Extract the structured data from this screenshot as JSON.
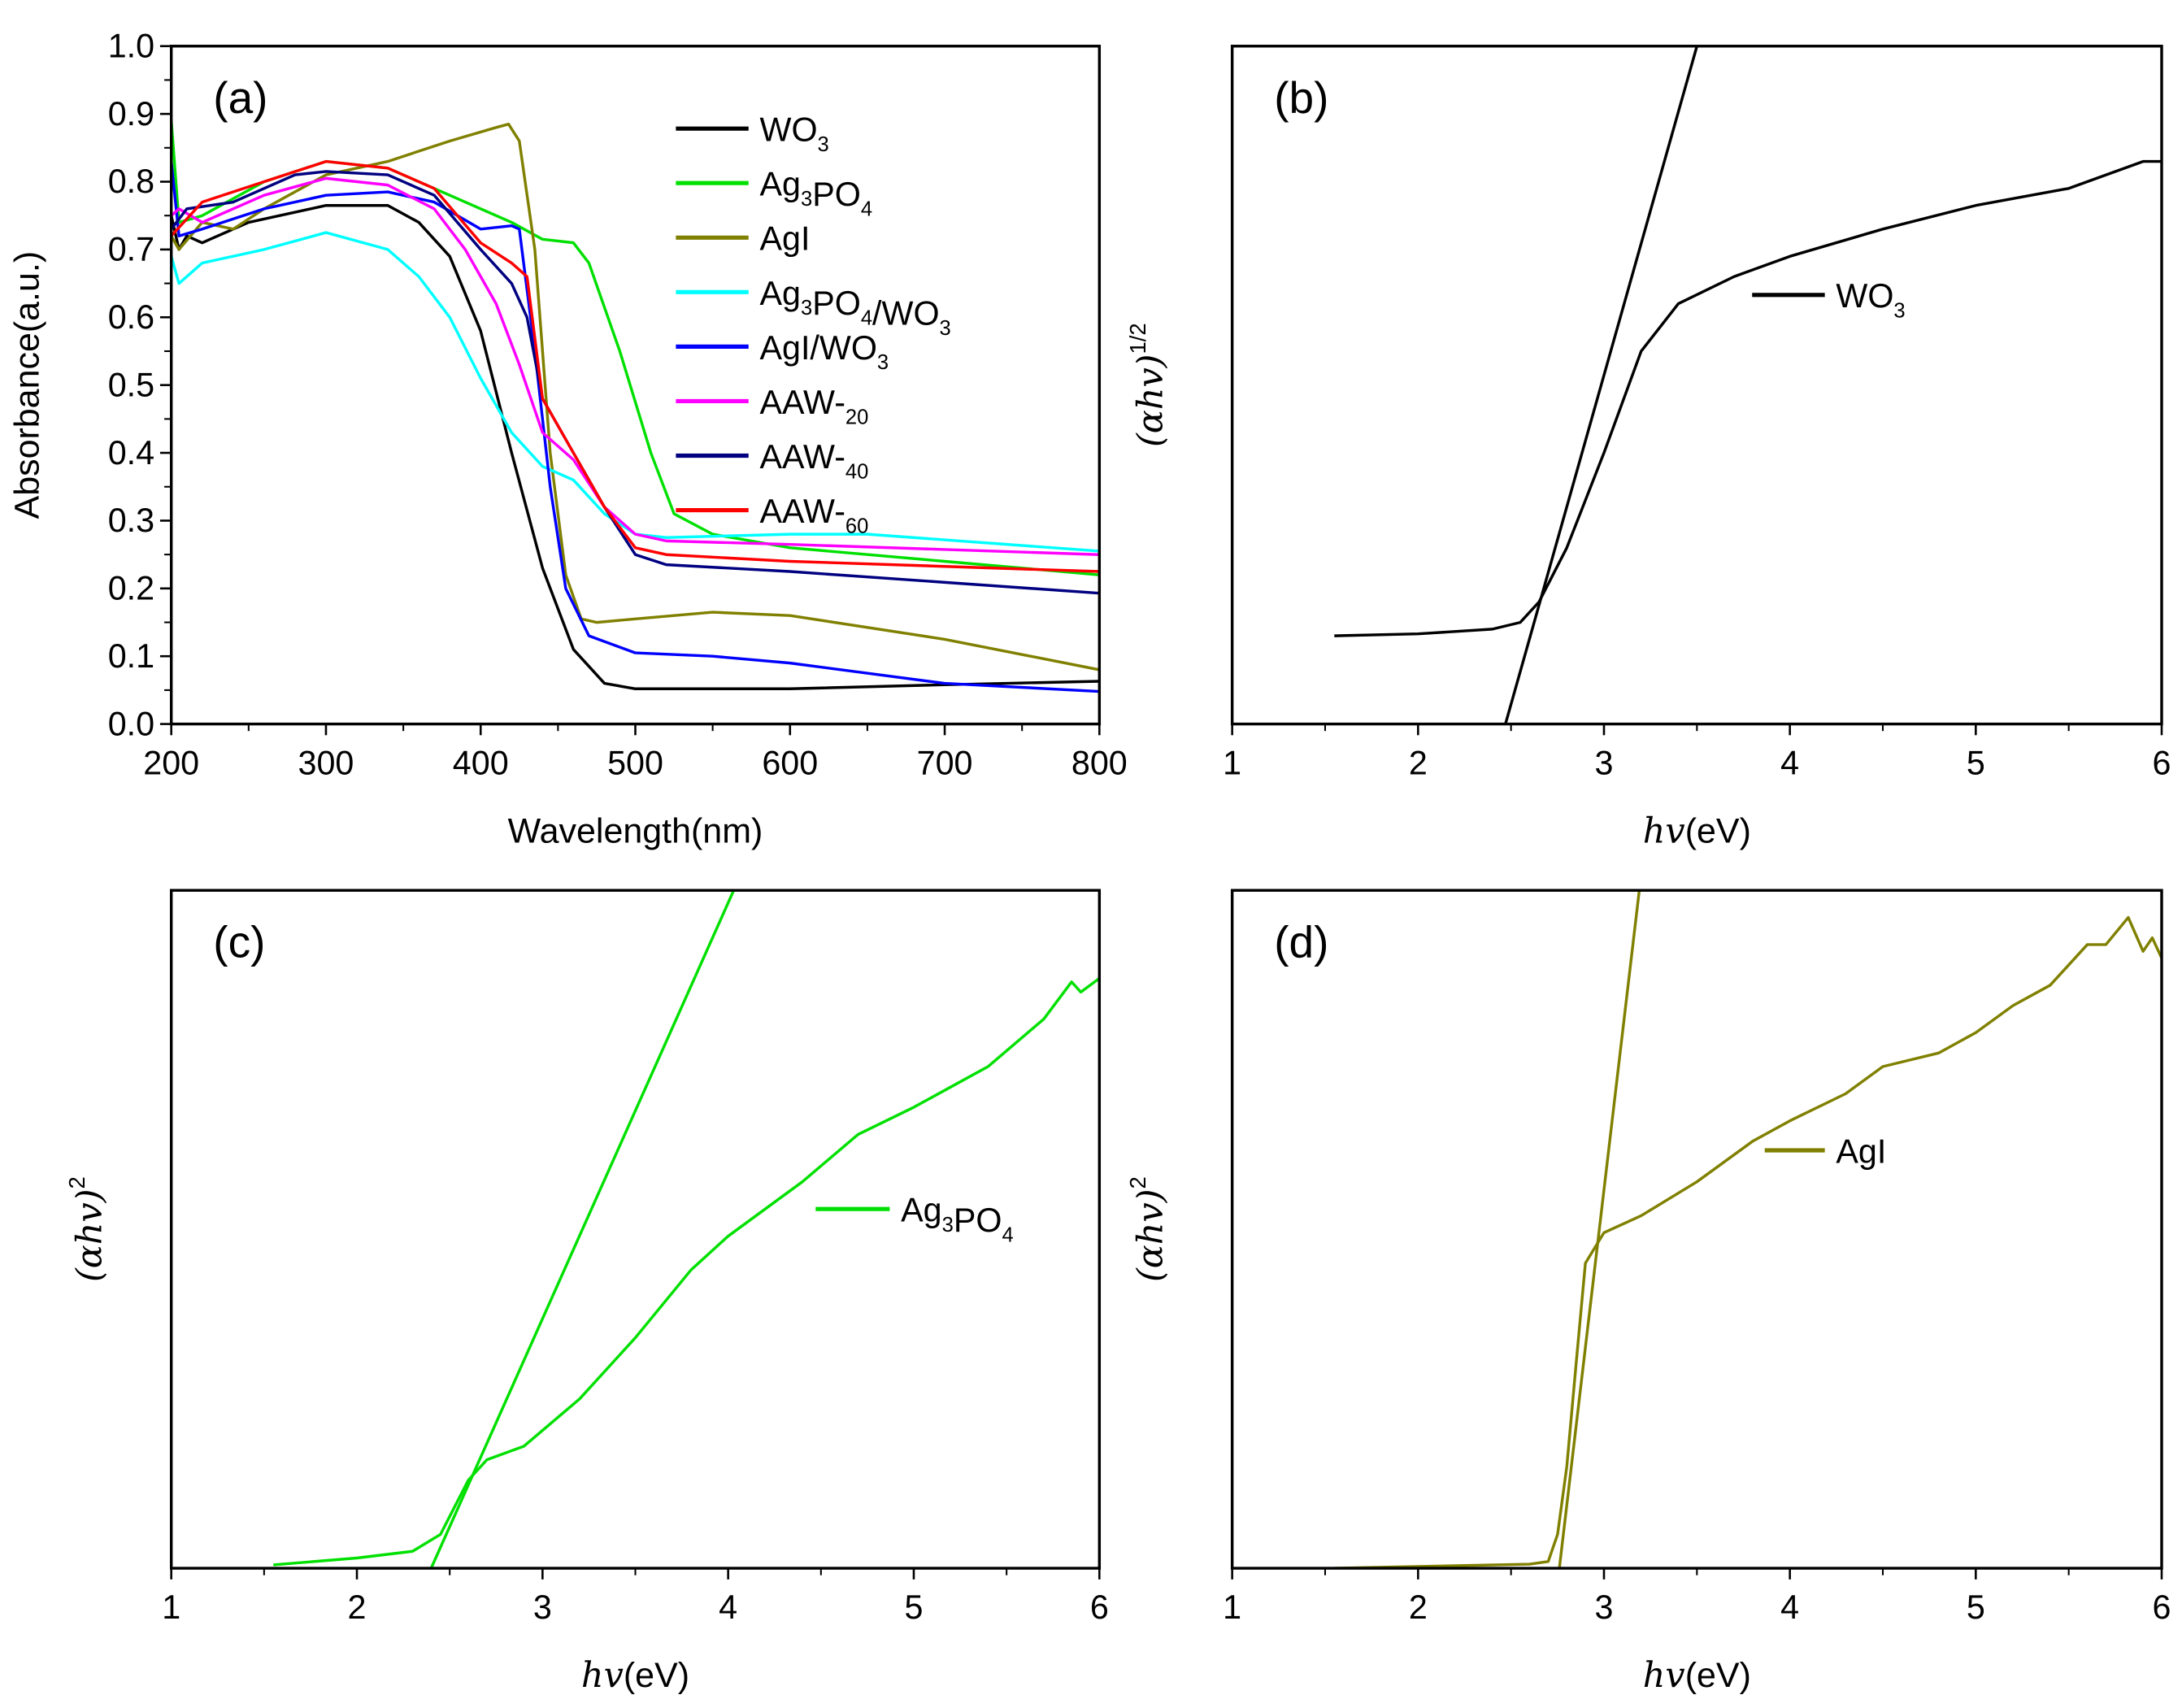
{
  "chart_data": [
    {
      "type": "line",
      "panel_label": "(a)",
      "xlabel": "Wavelength(nm)",
      "ylabel": "Absorbance(a.u.)",
      "xlim": [
        200,
        800
      ],
      "ylim": [
        0,
        1.0
      ],
      "xticks": [
        "200",
        "300",
        "400",
        "500",
        "600",
        "700",
        "800"
      ],
      "yticks": [
        "0.0",
        "0.1",
        "0.2",
        "0.3",
        "0.4",
        "0.5",
        "0.6",
        "0.7",
        "0.8",
        "0.9",
        "1.0"
      ],
      "legend_position": "top-right",
      "series": [
        {
          "name": "WO3",
          "color": "#000000",
          "x": [
            200,
            205,
            210,
            220,
            250,
            300,
            340,
            360,
            380,
            400,
            420,
            440,
            460,
            480,
            500,
            600,
            700,
            800
          ],
          "y": [
            0.75,
            0.7,
            0.72,
            0.71,
            0.74,
            0.765,
            0.765,
            0.74,
            0.69,
            0.58,
            0.4,
            0.23,
            0.11,
            0.06,
            0.052,
            0.052,
            0.058,
            0.063
          ]
        },
        {
          "name": "Ag3PO4",
          "color": "#00e000",
          "x": [
            200,
            205,
            220,
            260,
            300,
            340,
            380,
            420,
            440,
            460,
            470,
            490,
            510,
            525,
            550,
            600,
            700,
            800
          ],
          "y": [
            0.89,
            0.74,
            0.75,
            0.8,
            0.83,
            0.82,
            0.78,
            0.74,
            0.715,
            0.71,
            0.68,
            0.55,
            0.4,
            0.31,
            0.28,
            0.26,
            0.24,
            0.22
          ]
        },
        {
          "name": "AgI",
          "color": "#808000",
          "x": [
            200,
            205,
            220,
            240,
            260,
            300,
            340,
            380,
            410,
            418,
            425,
            435,
            445,
            455,
            465,
            475,
            500,
            550,
            600,
            700,
            800
          ],
          "y": [
            0.72,
            0.7,
            0.74,
            0.73,
            0.76,
            0.81,
            0.83,
            0.86,
            0.88,
            0.885,
            0.86,
            0.7,
            0.4,
            0.22,
            0.155,
            0.15,
            0.155,
            0.165,
            0.16,
            0.125,
            0.08
          ]
        },
        {
          "name": "Ag3PO4/WO3",
          "color": "#00ffff",
          "x": [
            200,
            205,
            220,
            260,
            300,
            340,
            360,
            380,
            400,
            420,
            440,
            460,
            480,
            500,
            520,
            600,
            650,
            800
          ],
          "y": [
            0.69,
            0.65,
            0.68,
            0.7,
            0.725,
            0.7,
            0.66,
            0.6,
            0.51,
            0.43,
            0.38,
            0.36,
            0.31,
            0.28,
            0.275,
            0.28,
            0.28,
            0.255
          ]
        },
        {
          "name": "AgI/WO3",
          "color": "#0000ff",
          "x": [
            200,
            205,
            220,
            260,
            300,
            340,
            370,
            400,
            420,
            425,
            435,
            445,
            455,
            470,
            500,
            550,
            600,
            700,
            800
          ],
          "y": [
            0.83,
            0.72,
            0.73,
            0.76,
            0.78,
            0.785,
            0.77,
            0.73,
            0.735,
            0.73,
            0.55,
            0.35,
            0.2,
            0.13,
            0.105,
            0.1,
            0.09,
            0.06,
            0.048
          ]
        },
        {
          "name": "AAW-20",
          "color": "#ff00ff",
          "x": [
            200,
            205,
            220,
            260,
            300,
            340,
            370,
            390,
            410,
            425,
            440,
            460,
            480,
            500,
            520,
            600,
            800
          ],
          "y": [
            0.75,
            0.76,
            0.74,
            0.78,
            0.805,
            0.795,
            0.76,
            0.7,
            0.62,
            0.53,
            0.43,
            0.39,
            0.32,
            0.28,
            0.27,
            0.265,
            0.25
          ]
        },
        {
          "name": "AAW-40",
          "color": "#000080",
          "x": [
            200,
            210,
            240,
            280,
            300,
            340,
            370,
            400,
            420,
            430,
            440,
            460,
            480,
            500,
            520,
            600,
            800
          ],
          "y": [
            0.73,
            0.76,
            0.77,
            0.81,
            0.815,
            0.81,
            0.78,
            0.7,
            0.65,
            0.6,
            0.48,
            0.4,
            0.32,
            0.25,
            0.235,
            0.225,
            0.193
          ]
        },
        {
          "name": "AAW-60",
          "color": "#ff0000",
          "x": [
            200,
            220,
            260,
            300,
            340,
            370,
            400,
            420,
            430,
            440,
            460,
            480,
            500,
            520,
            600,
            800
          ],
          "y": [
            0.72,
            0.77,
            0.8,
            0.83,
            0.82,
            0.79,
            0.71,
            0.68,
            0.66,
            0.48,
            0.4,
            0.32,
            0.26,
            0.25,
            0.24,
            0.225
          ]
        }
      ]
    },
    {
      "type": "line",
      "panel_label": "(b)",
      "xlabel_italic": "hv",
      "xlabel_rest": "(eV)",
      "ylabel_italic": "(αhv)",
      "ylabel_sup": "1/2",
      "xlim": [
        1,
        6
      ],
      "ylim": [
        0,
        1
      ],
      "xticks": [
        "1",
        "2",
        "3",
        "4",
        "5",
        "6"
      ],
      "legend_position": "center-right",
      "series": [
        {
          "name": "WO3",
          "color": "#000000",
          "x": [
            1.55,
            2.0,
            2.4,
            2.55,
            2.65,
            2.8,
            3.0,
            3.2,
            3.4,
            3.7,
            4.0,
            4.5,
            5.0,
            5.5,
            5.9,
            6.0
          ],
          "y": [
            0.13,
            0.133,
            0.14,
            0.15,
            0.18,
            0.26,
            0.4,
            0.55,
            0.62,
            0.66,
            0.69,
            0.73,
            0.765,
            0.79,
            0.83,
            0.83
          ]
        }
      ],
      "fit_line": {
        "color": "#000000",
        "x": [
          2.47,
          3.5
        ],
        "y": [
          0,
          1
        ]
      }
    },
    {
      "type": "line",
      "panel_label": "(c)",
      "xlabel_italic": "hv",
      "xlabel_rest": "(eV)",
      "ylabel_italic": "(αhv)",
      "ylabel_sup": "2",
      "xlim": [
        1,
        6
      ],
      "ylim": [
        0,
        1
      ],
      "xticks": [
        "1",
        "2",
        "3",
        "4",
        "5",
        "6"
      ],
      "legend_position": "center-right",
      "series": [
        {
          "name": "Ag3PO4",
          "color": "#00e000",
          "x": [
            1.55,
            2.0,
            2.3,
            2.45,
            2.6,
            2.7,
            2.9,
            3.2,
            3.5,
            3.8,
            4.0,
            4.4,
            4.7,
            5.0,
            5.4,
            5.7,
            5.85,
            5.9,
            6.0
          ],
          "y": [
            0.005,
            0.015,
            0.025,
            0.05,
            0.13,
            0.16,
            0.18,
            0.25,
            0.34,
            0.44,
            0.49,
            0.57,
            0.64,
            0.68,
            0.74,
            0.81,
            0.865,
            0.85,
            0.87
          ]
        }
      ],
      "fit_line": {
        "color": "#00e000",
        "x": [
          2.4,
          4.03
        ],
        "y": [
          0,
          1
        ]
      }
    },
    {
      "type": "line",
      "panel_label": "(d)",
      "xlabel_italic": "hv",
      "xlabel_rest": "(eV)",
      "ylabel_italic": "(αhv)",
      "ylabel_sup": "2",
      "xlim": [
        1,
        6
      ],
      "ylim": [
        0,
        1
      ],
      "xticks": [
        "1",
        "2",
        "3",
        "4",
        "5",
        "6"
      ],
      "legend_position": "center-right",
      "series": [
        {
          "name": "AgI",
          "color": "#808000",
          "x": [
            1.55,
            2.6,
            2.7,
            2.75,
            2.8,
            2.85,
            2.9,
            3.0,
            3.2,
            3.5,
            3.8,
            4.0,
            4.3,
            4.5,
            4.8,
            5.0,
            5.2,
            5.4,
            5.6,
            5.7,
            5.82,
            5.9,
            5.95,
            6.0
          ],
          "y": [
            0.0,
            0.006,
            0.01,
            0.05,
            0.15,
            0.3,
            0.45,
            0.495,
            0.52,
            0.57,
            0.63,
            0.66,
            0.7,
            0.74,
            0.76,
            0.79,
            0.83,
            0.86,
            0.92,
            0.92,
            0.96,
            0.91,
            0.93,
            0.9
          ]
        }
      ],
      "fit_line": {
        "color": "#808000",
        "x": [
          2.76,
          3.19
        ],
        "y": [
          0,
          1
        ]
      }
    }
  ]
}
